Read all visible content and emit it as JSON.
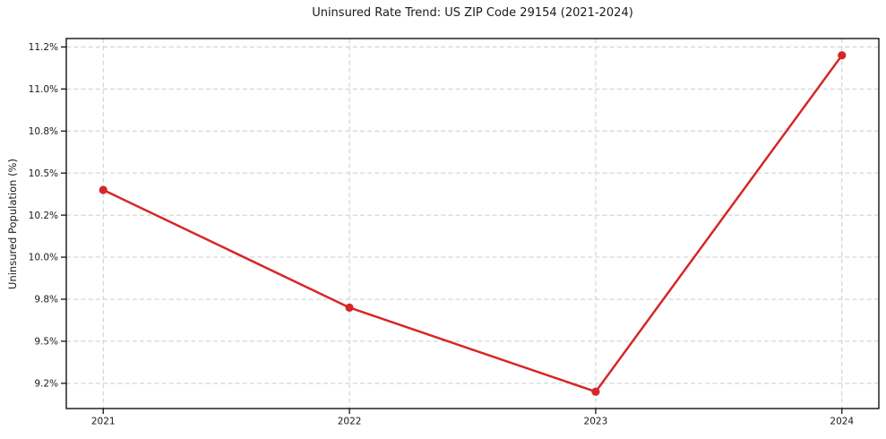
{
  "chart_data": {
    "type": "line",
    "title": "Uninsured Rate Trend: US ZIP Code 29154 (2021-2024)",
    "xlabel": "",
    "ylabel": "Uninsured Population (%)",
    "x": [
      2021,
      2022,
      2023,
      2024
    ],
    "values": [
      10.4,
      9.7,
      9.2,
      11.2
    ],
    "xtick_labels": [
      "2021",
      "2022",
      "2023",
      "2024"
    ],
    "ytick_values": [
      9.25,
      9.5,
      9.75,
      10.0,
      10.25,
      10.5,
      10.75,
      11.0,
      11.25
    ],
    "ytick_labels": [
      "9.2%",
      "9.5%",
      "9.8%",
      "10.0%",
      "10.2%",
      "10.5%",
      "10.8%",
      "11.0%",
      "11.2%"
    ],
    "xlim": [
      2020.85,
      2024.15
    ],
    "ylim": [
      9.1,
      11.3
    ],
    "grid": true,
    "grid_style": "dashed",
    "legend": "none",
    "colors": {
      "line": "#d62728",
      "marker": "#d62728",
      "grid": "#cccccc",
      "spine": "#000000",
      "text": "#1a1a1a",
      "background": "#ffffff"
    }
  }
}
